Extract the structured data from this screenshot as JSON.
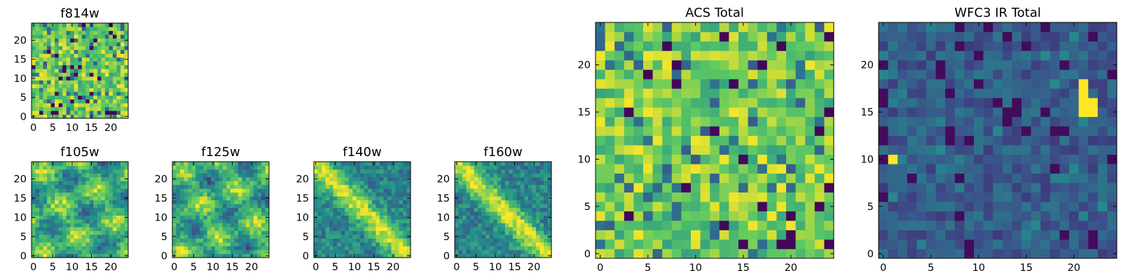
{
  "colormap": [
    "#440154",
    "#3b528b",
    "#21918c",
    "#5ec962",
    "#fde725"
  ],
  "chart_data": [
    {
      "id": "f814w",
      "type": "heatmap",
      "title": "f814w",
      "grid_size": 25,
      "pattern": "noise_high",
      "xticks": [
        0,
        5,
        10,
        15,
        20
      ],
      "yticks": [
        0,
        5,
        10,
        15,
        20
      ],
      "xlim": [
        0,
        24
      ],
      "ylim": [
        0,
        24
      ],
      "xtick_labels": [
        "0",
        "5",
        "10",
        "15",
        "20"
      ],
      "ytick_labels": [
        "0",
        "5",
        "10",
        "15",
        "20"
      ]
    },
    {
      "id": "f105w",
      "type": "heatmap",
      "title": "f105w",
      "grid_size": 25,
      "pattern": "blob_smooth",
      "xticks": [
        0,
        5,
        10,
        15,
        20
      ],
      "yticks": [
        0,
        5,
        10,
        15,
        20
      ],
      "xlim": [
        0,
        24
      ],
      "ylim": [
        0,
        24
      ],
      "xtick_labels": [
        "0",
        "5",
        "10",
        "15",
        "20"
      ],
      "ytick_labels": [
        "0",
        "5",
        "10",
        "15",
        "20"
      ]
    },
    {
      "id": "f125w",
      "type": "heatmap",
      "title": "f125w",
      "grid_size": 25,
      "pattern": "blob_smooth",
      "xticks": [
        0,
        5,
        10,
        15,
        20
      ],
      "yticks": [
        0,
        5,
        10,
        15,
        20
      ],
      "xlim": [
        0,
        24
      ],
      "ylim": [
        0,
        24
      ],
      "xtick_labels": [
        "0",
        "5",
        "10",
        "15",
        "20"
      ],
      "ytick_labels": [
        "0",
        "5",
        "10",
        "15",
        "20"
      ]
    },
    {
      "id": "f140w",
      "type": "heatmap",
      "title": "f140w",
      "grid_size": 25,
      "pattern": "diagonal_band",
      "xticks": [
        0,
        5,
        10,
        15,
        20
      ],
      "yticks": [
        0,
        5,
        10,
        15,
        20
      ],
      "xlim": [
        0,
        24
      ],
      "ylim": [
        0,
        24
      ],
      "xtick_labels": [
        "0",
        "5",
        "10",
        "15",
        "20"
      ],
      "ytick_labels": [
        "0",
        "5",
        "10",
        "15",
        "20"
      ]
    },
    {
      "id": "f160w",
      "type": "heatmap",
      "title": "f160w",
      "grid_size": 25,
      "pattern": "diagonal_band",
      "xticks": [
        0,
        5,
        10,
        15,
        20
      ],
      "yticks": [
        0,
        5,
        10,
        15,
        20
      ],
      "xlim": [
        0,
        24
      ],
      "ylim": [
        0,
        24
      ],
      "xtick_labels": [
        "0",
        "5",
        "10",
        "15",
        "20"
      ],
      "ytick_labels": [
        "0",
        "5",
        "10",
        "15",
        "20"
      ]
    },
    {
      "id": "acs_total",
      "type": "heatmap",
      "title": "ACS Total",
      "grid_size": 25,
      "pattern": "noise_high",
      "xticks": [
        0,
        5,
        10,
        15,
        20
      ],
      "yticks": [
        0,
        5,
        10,
        15,
        20
      ],
      "xlim": [
        0,
        24
      ],
      "ylim": [
        0,
        24
      ],
      "xtick_labels": [
        "0",
        "5",
        "10",
        "15",
        "20"
      ],
      "ytick_labels": [
        "0",
        "5",
        "10",
        "15",
        "20"
      ]
    },
    {
      "id": "wfc3_ir_total",
      "type": "heatmap",
      "title": "WFC3 IR Total",
      "grid_size": 25,
      "pattern": "noise_low",
      "bright_cells": [
        [
          21,
          15
        ],
        [
          22,
          15
        ],
        [
          21,
          16
        ],
        [
          22,
          16
        ],
        [
          21,
          17
        ],
        [
          21,
          18
        ],
        [
          1,
          10
        ]
      ],
      "xticks": [
        0,
        5,
        10,
        15,
        20
      ],
      "yticks": [
        0,
        5,
        10,
        15,
        20
      ],
      "xlim": [
        0,
        24
      ],
      "ylim": [
        0,
        24
      ],
      "xtick_labels": [
        "0",
        "5",
        "10",
        "15",
        "20"
      ],
      "ytick_labels": [
        "0",
        "5",
        "10",
        "15",
        "20"
      ]
    }
  ]
}
